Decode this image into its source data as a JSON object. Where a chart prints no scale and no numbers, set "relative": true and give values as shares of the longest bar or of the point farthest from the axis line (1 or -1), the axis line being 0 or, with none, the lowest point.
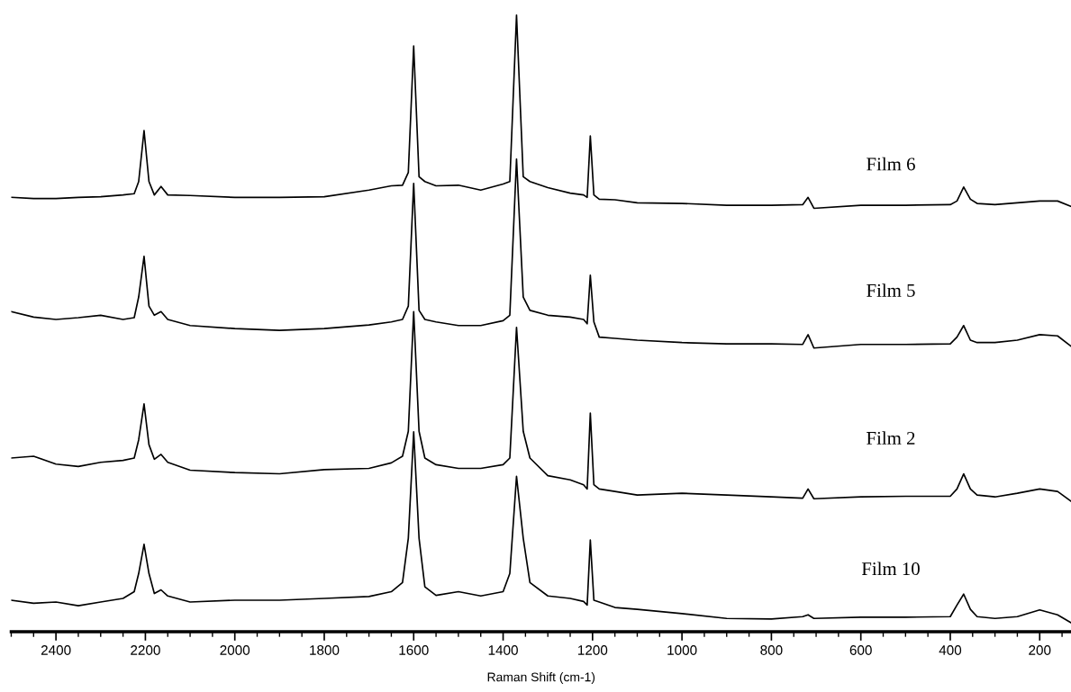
{
  "chart_data": {
    "type": "line",
    "xlabel": "Raman Shift (cm-1)",
    "relative": true,
    "tick_labels": "x",
    "xlim": [
      2500,
      130
    ],
    "xticks": [
      2400,
      2200,
      2000,
      1800,
      1600,
      1400,
      1200,
      1000,
      800,
      600,
      400,
      200
    ],
    "x": [
      2500,
      2450,
      2400,
      2350,
      2300,
      2250,
      2225,
      2215,
      2203,
      2192,
      2180,
      2165,
      2150,
      2100,
      2000,
      1900,
      1800,
      1700,
      1650,
      1625,
      1612,
      1600,
      1588,
      1575,
      1550,
      1500,
      1450,
      1400,
      1385,
      1370,
      1355,
      1340,
      1300,
      1250,
      1220,
      1212,
      1205,
      1197,
      1185,
      1150,
      1100,
      1000,
      900,
      800,
      730,
      718,
      705,
      600,
      500,
      400,
      385,
      370,
      355,
      340,
      300,
      250,
      200,
      160,
      130
    ],
    "series": [
      {
        "name": "Film 6",
        "color": "#000000",
        "values": [
          0.7,
          0.698,
          0.698,
          0.7,
          0.701,
          0.704,
          0.706,
          0.726,
          0.81,
          0.726,
          0.704,
          0.718,
          0.704,
          0.703,
          0.7,
          0.7,
          0.701,
          0.712,
          0.719,
          0.72,
          0.741,
          0.949,
          0.734,
          0.726,
          0.719,
          0.72,
          0.712,
          0.722,
          0.726,
          1.0,
          0.734,
          0.726,
          0.716,
          0.707,
          0.704,
          0.7,
          0.801,
          0.704,
          0.697,
          0.696,
          0.691,
          0.69,
          0.687,
          0.687,
          0.688,
          0.7,
          0.682,
          0.687,
          0.687,
          0.688,
          0.694,
          0.717,
          0.697,
          0.69,
          0.688,
          0.691,
          0.694,
          0.694,
          0.685
        ]
      },
      {
        "name": "Film 5",
        "color": "#000000",
        "values": [
          0.512,
          0.503,
          0.499,
          0.502,
          0.506,
          0.499,
          0.502,
          0.536,
          0.603,
          0.521,
          0.506,
          0.512,
          0.499,
          0.489,
          0.484,
          0.481,
          0.484,
          0.49,
          0.495,
          0.499,
          0.521,
          0.723,
          0.514,
          0.499,
          0.495,
          0.489,
          0.489,
          0.497,
          0.506,
          0.763,
          0.536,
          0.514,
          0.506,
          0.503,
          0.499,
          0.492,
          0.572,
          0.495,
          0.47,
          0.468,
          0.465,
          0.461,
          0.459,
          0.459,
          0.458,
          0.474,
          0.452,
          0.458,
          0.458,
          0.459,
          0.47,
          0.489,
          0.465,
          0.461,
          0.461,
          0.465,
          0.474,
          0.472,
          0.455
        ]
      },
      {
        "name": "Film 2",
        "color": "#000000",
        "values": [
          0.271,
          0.274,
          0.261,
          0.257,
          0.264,
          0.267,
          0.271,
          0.301,
          0.36,
          0.293,
          0.269,
          0.277,
          0.264,
          0.251,
          0.247,
          0.245,
          0.252,
          0.254,
          0.263,
          0.274,
          0.315,
          0.512,
          0.315,
          0.271,
          0.26,
          0.254,
          0.254,
          0.26,
          0.271,
          0.486,
          0.315,
          0.271,
          0.242,
          0.235,
          0.227,
          0.22,
          0.345,
          0.227,
          0.22,
          0.216,
          0.21,
          0.213,
          0.21,
          0.207,
          0.205,
          0.22,
          0.204,
          0.207,
          0.208,
          0.208,
          0.22,
          0.245,
          0.22,
          0.21,
          0.207,
          0.213,
          0.22,
          0.216,
          0.2
        ]
      },
      {
        "name": "Film 10",
        "color": "#000000",
        "values": [
          0.037,
          0.032,
          0.034,
          0.028,
          0.034,
          0.04,
          0.051,
          0.081,
          0.129,
          0.081,
          0.048,
          0.054,
          0.044,
          0.034,
          0.037,
          0.037,
          0.04,
          0.043,
          0.051,
          0.066,
          0.139,
          0.314,
          0.139,
          0.059,
          0.045,
          0.051,
          0.044,
          0.051,
          0.081,
          0.241,
          0.139,
          0.066,
          0.044,
          0.04,
          0.035,
          0.029,
          0.136,
          0.037,
          0.034,
          0.025,
          0.022,
          0.015,
          0.007,
          0.006,
          0.01,
          0.013,
          0.007,
          0.009,
          0.009,
          0.01,
          0.029,
          0.047,
          0.022,
          0.01,
          0.007,
          0.01,
          0.021,
          0.013,
          0
        ]
      }
    ]
  }
}
